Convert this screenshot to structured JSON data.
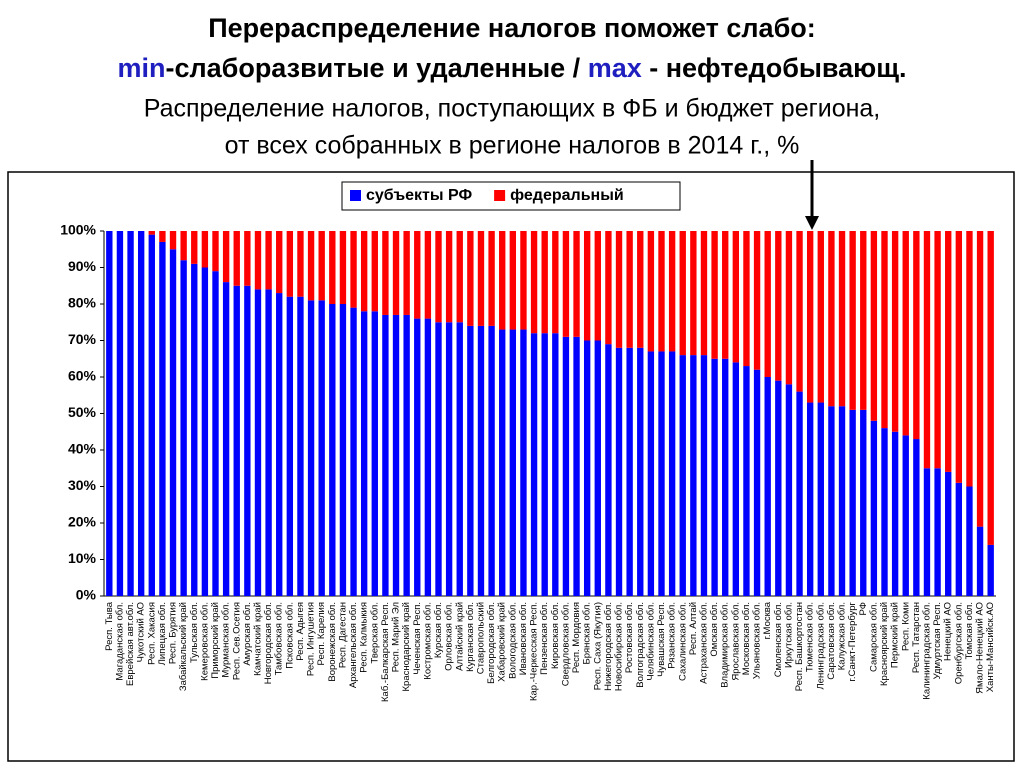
{
  "chart_data": {
    "type": "stacked_bar",
    "title": "Перераспределение налогов поможет слабо:",
    "title_line2": [
      {
        "text": "min",
        "color": "#1f1fbf"
      },
      {
        "text": "-слаборазвитые и удаленные / ",
        "color": "#000000"
      },
      {
        "text": "max",
        "color": "#1f1fbf"
      },
      {
        "text": " - нефтедобывающ.",
        "color": "#000000"
      }
    ],
    "subtitle": [
      "Распределение налогов, поступающих в ФБ и бюджет региона,",
      "от всех собранных в регионе налогов в 2014 г., %"
    ],
    "categories": [
      "Респ. Тыва",
      "Магаданская обл.",
      "Еврейская авт.обл.",
      "Чукотский АО",
      "Респ. Хакасия",
      "Липецкая обл.",
      "Респ. Бурятия",
      "Забайкальский край",
      "Тульская обл.",
      "Кемеровская обл.",
      "Приморский край",
      "Мурманская обл.",
      "Респ. Сев.Осетия",
      "Амурская обл.",
      "Камчатский край",
      "Новгородская обл.",
      "Тамбовская обл.",
      "Псковская обл.",
      "Респ. Адыгея",
      "Респ. Ингушетия",
      "Респ. Карелия",
      "Воронежская обл.",
      "Респ. Дагестан",
      "Архангельская обл.",
      "Респ. Калмыкия",
      "Тверская обл.",
      "Каб.-Балкарская Респ.",
      "Респ. Марий Эл",
      "Краснодарский край",
      "Чеченская Респ.",
      "Костромская обл.",
      "Курская обл.",
      "Орловская обл.",
      "Алтайский край",
      "Курганская обл.",
      "Ставропольский",
      "Белгородская обл.",
      "Хабаровский край",
      "Вологодская обл.",
      "Ивановская обл.",
      "Кар.-Черкесская Респ.",
      "Пензенская обл.",
      "Кировская обл.",
      "Свердловская обл.",
      "Респ. Мордовия",
      "Брянская обл.",
      "Респ. Саха (Якутия)",
      "Нижегородская обл.",
      "Новосибирская обл.",
      "Ростовская обл.",
      "Волгоградская обл.",
      "Челябинская обл.",
      "Чувашская Респ.",
      "Рязанская обл.",
      "Сахалинская обл.",
      "Респ. Алтай",
      "Астраханская обл.",
      "Омская обл.",
      "Владимирская обл.",
      "Ярославская обл.",
      "Московская обл.",
      "Ульяновская обл.",
      "г.Москва",
      "Смоленская обл.",
      "Иркутская обл.",
      "Респ. Башкортостан",
      "Тюменская обл.",
      "Ленинградская обл.",
      "Саратовская обл.",
      "Калужская обл.",
      "г.Санкт-Петербург",
      "РФ",
      "Самарская обл.",
      "Красноярский край",
      "Пермский край",
      "Респ. Коми",
      "Респ. Татарстан",
      "Калининградская обл.",
      "Удмуртская Респ.",
      "Ненецкий АО",
      "Оренбургская обл.",
      "Томская обл.",
      "Ямало-Ненецкий АО",
      "Ханты-Мансийск.АО"
    ],
    "series": [
      {
        "name": "субъекты РФ",
        "color": "#0000ff",
        "values": [
          100,
          100,
          100,
          100,
          99,
          97,
          95,
          92,
          91,
          90,
          89,
          86,
          85,
          85,
          84,
          84,
          83,
          82,
          82,
          81,
          81,
          80,
          80,
          79,
          78,
          78,
          77,
          77,
          77,
          76,
          76,
          75,
          75,
          75,
          74,
          74,
          74,
          73,
          73,
          73,
          72,
          72,
          72,
          71,
          71,
          70,
          70,
          69,
          68,
          68,
          68,
          67,
          67,
          67,
          66,
          66,
          66,
          65,
          65,
          64,
          63,
          62,
          60,
          59,
          58,
          56,
          53,
          53,
          52,
          52,
          51,
          51,
          48,
          46,
          45,
          44,
          43,
          35,
          35,
          34,
          31,
          30,
          19,
          14
        ]
      },
      {
        "name": "федеральный",
        "color": "#ff0000",
        "values": [
          0,
          0,
          0,
          0,
          1,
          3,
          5,
          8,
          9,
          10,
          11,
          14,
          15,
          15,
          16,
          16,
          17,
          18,
          18,
          19,
          19,
          20,
          20,
          21,
          22,
          22,
          23,
          23,
          23,
          24,
          24,
          25,
          25,
          25,
          26,
          26,
          26,
          27,
          27,
          27,
          28,
          28,
          28,
          29,
          29,
          30,
          30,
          31,
          32,
          32,
          32,
          33,
          33,
          33,
          34,
          34,
          34,
          35,
          35,
          36,
          37,
          38,
          40,
          41,
          42,
          44,
          47,
          47,
          48,
          48,
          49,
          49,
          52,
          54,
          55,
          56,
          57,
          65,
          65,
          66,
          69,
          70,
          81,
          86
        ]
      }
    ],
    "ylim": [
      0,
      100
    ],
    "yticks": [
      {
        "value": 0,
        "label": "0%"
      },
      {
        "value": 10,
        "label": "10%"
      },
      {
        "value": 20,
        "label": "20%"
      },
      {
        "value": 30,
        "label": "30%"
      },
      {
        "value": 40,
        "label": "40%"
      },
      {
        "value": 50,
        "label": "50%"
      },
      {
        "value": 60,
        "label": "60%"
      },
      {
        "value": 70,
        "label": "70%"
      },
      {
        "value": 80,
        "label": "80%"
      },
      {
        "value": 90,
        "label": "90%"
      },
      {
        "value": 100,
        "label": "100%"
      }
    ],
    "legend": "top"
  }
}
